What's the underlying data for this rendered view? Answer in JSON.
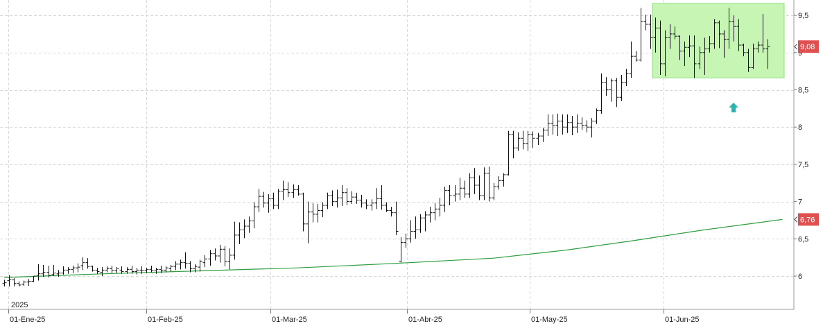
{
  "chart_data": {
    "type": "ohlc",
    "year_label": "2025",
    "x_ticks": [
      "01-Ene-25",
      "01-Feb-25",
      "01-Mar-25",
      "01-Abr-25",
      "01-May-25",
      "01-Jun-25"
    ],
    "y_ticks": [
      "6",
      "6,5",
      "7",
      "7,5",
      "8",
      "8,5",
      "9",
      "9,5"
    ],
    "ylim": [
      5.5,
      9.7
    ],
    "grid": true,
    "last_price": {
      "label": "9,08",
      "value": 9.08,
      "color": "#e05050"
    },
    "moving_average": {
      "label": "6,76",
      "value": 6.76,
      "color": "#2e9e3e"
    },
    "highlight_range": {
      "y_from": 8.66,
      "y_to": 9.66,
      "color": "#c6f5b4",
      "border": "#8ee07a"
    },
    "signal_arrow": {
      "direction": "up",
      "color": "#2bb3b0"
    },
    "price_bars": [
      [
        5.9,
        5.95,
        5.86,
        5.91
      ],
      [
        5.94,
        6.01,
        5.86,
        5.95
      ],
      [
        5.95,
        5.97,
        5.86,
        5.9
      ],
      [
        5.9,
        5.93,
        5.86,
        5.88
      ],
      [
        5.89,
        5.94,
        5.87,
        5.92
      ],
      [
        5.92,
        5.96,
        5.87,
        5.93
      ],
      [
        5.93,
        6.0,
        5.92,
        6.0
      ],
      [
        6.01,
        6.16,
        5.94,
        6.03
      ],
      [
        6.03,
        6.15,
        5.99,
        6.05
      ],
      [
        6.05,
        6.14,
        5.98,
        6.01
      ],
      [
        6.02,
        6.15,
        6.0,
        6.04
      ],
      [
        6.03,
        6.08,
        5.99,
        6.04
      ],
      [
        6.04,
        6.13,
        6.02,
        6.08
      ],
      [
        6.08,
        6.12,
        6.03,
        6.09
      ],
      [
        6.09,
        6.14,
        6.04,
        6.11
      ],
      [
        6.11,
        6.17,
        6.05,
        6.12
      ],
      [
        6.14,
        6.25,
        6.08,
        6.18
      ],
      [
        6.18,
        6.24,
        6.1,
        6.13
      ],
      [
        6.13,
        6.14,
        6.06,
        6.08
      ],
      [
        6.08,
        6.11,
        6.03,
        6.06
      ],
      [
        6.05,
        6.12,
        6.0,
        6.08
      ],
      [
        6.08,
        6.13,
        6.05,
        6.1
      ],
      [
        6.1,
        6.14,
        6.04,
        6.07
      ],
      [
        6.07,
        6.12,
        6.04,
        6.1
      ],
      [
        6.08,
        6.13,
        6.03,
        6.06
      ],
      [
        6.06,
        6.12,
        6.03,
        6.09
      ],
      [
        6.09,
        6.14,
        6.03,
        6.06
      ],
      [
        6.06,
        6.11,
        6.02,
        6.08
      ],
      [
        6.08,
        6.13,
        6.03,
        6.07
      ],
      [
        6.07,
        6.11,
        6.04,
        6.09
      ],
      [
        6.09,
        6.14,
        6.05,
        6.07
      ],
      [
        6.07,
        6.11,
        6.03,
        6.09
      ],
      [
        6.09,
        6.14,
        6.04,
        6.08
      ],
      [
        6.08,
        6.13,
        6.05,
        6.11
      ],
      [
        6.1,
        6.15,
        6.06,
        6.13
      ],
      [
        6.13,
        6.2,
        6.08,
        6.16
      ],
      [
        6.16,
        6.22,
        6.09,
        6.18
      ],
      [
        6.18,
        6.32,
        6.1,
        6.17
      ],
      [
        6.17,
        6.2,
        6.05,
        6.1
      ],
      [
        6.1,
        6.16,
        6.05,
        6.13
      ],
      [
        6.12,
        6.22,
        6.06,
        6.2
      ],
      [
        6.18,
        6.28,
        6.12,
        6.23
      ],
      [
        6.23,
        6.35,
        6.14,
        6.3
      ],
      [
        6.3,
        6.37,
        6.21,
        6.27
      ],
      [
        6.27,
        6.42,
        6.18,
        6.36
      ],
      [
        6.36,
        6.4,
        6.13,
        6.2
      ],
      [
        6.2,
        6.37,
        6.09,
        6.28
      ],
      [
        6.28,
        6.73,
        6.22,
        6.55
      ],
      [
        6.55,
        6.72,
        6.43,
        6.62
      ],
      [
        6.62,
        6.76,
        6.51,
        6.67
      ],
      [
        6.67,
        6.8,
        6.58,
        6.74
      ],
      [
        6.74,
        6.99,
        6.64,
        6.93
      ],
      [
        6.93,
        7.17,
        6.86,
        7.07
      ],
      [
        7.07,
        7.13,
        6.92,
        6.98
      ],
      [
        6.98,
        7.1,
        6.85,
        7.04
      ],
      [
        7.04,
        7.12,
        6.9,
        6.95
      ],
      [
        6.95,
        7.17,
        6.9,
        7.14
      ],
      [
        7.14,
        7.28,
        7.02,
        7.16
      ],
      [
        7.16,
        7.26,
        7.06,
        7.12
      ],
      [
        7.12,
        7.23,
        7.05,
        7.16
      ],
      [
        7.16,
        7.22,
        7.08,
        7.1
      ],
      [
        7.1,
        7.12,
        6.6,
        6.7
      ],
      [
        6.7,
        7.0,
        6.44,
        6.86
      ],
      [
        6.86,
        6.98,
        6.72,
        6.83
      ],
      [
        6.83,
        6.97,
        6.72,
        6.88
      ],
      [
        6.88,
        6.99,
        6.79,
        6.95
      ],
      [
        6.95,
        7.12,
        6.9,
        7.08
      ],
      [
        7.08,
        7.15,
        6.94,
        7.0
      ],
      [
        7.0,
        7.16,
        6.92,
        7.05
      ],
      [
        7.05,
        7.22,
        6.94,
        7.12
      ],
      [
        7.12,
        7.18,
        6.95,
        7.0
      ],
      [
        7.0,
        7.14,
        6.97,
        7.06
      ],
      [
        7.06,
        7.12,
        6.97,
        7.02
      ],
      [
        7.02,
        7.09,
        6.92,
        6.98
      ],
      [
        6.98,
        7.03,
        6.9,
        6.95
      ],
      [
        6.95,
        7.03,
        6.88,
        6.98
      ],
      [
        6.98,
        7.18,
        6.9,
        7.04
      ],
      [
        7.04,
        7.22,
        6.89,
        6.95
      ],
      [
        6.95,
        6.99,
        6.86,
        6.88
      ],
      [
        6.88,
        6.93,
        6.8,
        6.85
      ],
      [
        6.85,
        7.0,
        6.55,
        6.6
      ],
      [
        6.2,
        6.52,
        6.18,
        6.45
      ],
      [
        6.45,
        6.57,
        6.38,
        6.5
      ],
      [
        6.5,
        6.75,
        6.45,
        6.6
      ],
      [
        6.6,
        6.8,
        6.5,
        6.62
      ],
      [
        6.62,
        6.83,
        6.58,
        6.78
      ],
      [
        6.78,
        6.87,
        6.6,
        6.82
      ],
      [
        6.82,
        6.93,
        6.72,
        6.85
      ],
      [
        6.85,
        6.98,
        6.75,
        6.9
      ],
      [
        6.9,
        7.05,
        6.8,
        6.95
      ],
      [
        6.95,
        7.2,
        6.86,
        7.15
      ],
      [
        7.15,
        7.22,
        6.95,
        7.08
      ],
      [
        7.08,
        7.22,
        7.0,
        7.1
      ],
      [
        7.1,
        7.32,
        7.02,
        7.18
      ],
      [
        7.18,
        7.28,
        7.05,
        7.1
      ],
      [
        7.1,
        7.38,
        7.05,
        7.32
      ],
      [
        7.32,
        7.45,
        7.1,
        7.22
      ],
      [
        7.22,
        7.35,
        7.02,
        7.08
      ],
      [
        7.08,
        7.46,
        7.02,
        7.38
      ],
      [
        7.38,
        7.47,
        7.0,
        7.05
      ],
      [
        7.05,
        7.25,
        7.02,
        7.2
      ],
      [
        7.2,
        7.34,
        7.16,
        7.28
      ],
      [
        7.28,
        7.38,
        7.2,
        7.36
      ],
      [
        7.36,
        7.95,
        7.35,
        7.9
      ],
      [
        7.9,
        7.95,
        7.58,
        7.72
      ],
      [
        7.72,
        7.93,
        7.68,
        7.85
      ],
      [
        7.85,
        7.95,
        7.7,
        7.78
      ],
      [
        7.78,
        7.95,
        7.68,
        7.9
      ],
      [
        7.9,
        7.94,
        7.72,
        7.85
      ],
      [
        7.85,
        7.92,
        7.76,
        7.88
      ],
      [
        7.88,
        7.99,
        7.8,
        7.96
      ],
      [
        7.96,
        8.17,
        7.88,
        8.05
      ],
      [
        8.05,
        8.17,
        7.9,
        8.02
      ],
      [
        8.02,
        8.18,
        7.88,
        8.08
      ],
      [
        8.08,
        8.17,
        7.9,
        8.0
      ],
      [
        8.0,
        8.17,
        7.92,
        8.06
      ],
      [
        8.06,
        8.15,
        7.89,
        8.0
      ],
      [
        8.0,
        8.17,
        7.92,
        8.05
      ],
      [
        8.05,
        8.13,
        7.96,
        8.02
      ],
      [
        8.02,
        8.09,
        7.93,
        8.0
      ],
      [
        8.0,
        8.12,
        7.86,
        8.08
      ],
      [
        8.08,
        8.25,
        8.04,
        8.22
      ],
      [
        8.22,
        8.72,
        8.18,
        8.6
      ],
      [
        8.6,
        8.67,
        8.42,
        8.5
      ],
      [
        8.5,
        8.65,
        8.34,
        8.62
      ],
      [
        8.62,
        8.66,
        8.27,
        8.4
      ],
      [
        8.4,
        8.7,
        8.35,
        8.6
      ],
      [
        8.6,
        8.78,
        8.55,
        8.72
      ],
      [
        8.72,
        9.15,
        8.66,
        8.95
      ],
      [
        8.95,
        9.02,
        8.88,
        8.9
      ],
      [
        8.9,
        9.6,
        8.88,
        9.42
      ],
      [
        9.42,
        9.51,
        9.3,
        9.38
      ],
      [
        9.38,
        9.51,
        9.05,
        9.2
      ],
      [
        9.2,
        9.47,
        9.0,
        9.33
      ],
      [
        9.33,
        9.43,
        8.7,
        8.85
      ],
      [
        8.85,
        9.3,
        8.68,
        9.2
      ],
      [
        9.2,
        9.38,
        9.05,
        9.25
      ],
      [
        9.25,
        9.35,
        9.18,
        9.22
      ],
      [
        9.22,
        9.23,
        8.9,
        9.02
      ],
      [
        9.02,
        9.15,
        8.82,
        9.07
      ],
      [
        9.07,
        9.23,
        8.94,
        9.09
      ],
      [
        9.09,
        9.23,
        8.66,
        8.85
      ],
      [
        8.85,
        9.08,
        8.78,
        9.0
      ],
      [
        9.0,
        9.2,
        8.7,
        9.05
      ],
      [
        9.05,
        9.22,
        9.0,
        9.12
      ],
      [
        9.12,
        9.45,
        9.05,
        9.4
      ],
      [
        9.4,
        9.43,
        9.06,
        9.25
      ],
      [
        9.25,
        9.3,
        8.93,
        9.18
      ],
      [
        9.18,
        9.6,
        9.05,
        9.42
      ],
      [
        9.42,
        9.5,
        9.15,
        9.35
      ],
      [
        9.35,
        9.45,
        9.02,
        9.1
      ],
      [
        9.1,
        9.12,
        8.95,
        9.0
      ],
      [
        9.0,
        9.05,
        8.74,
        8.8
      ],
      [
        8.8,
        9.12,
        8.78,
        9.05
      ],
      [
        9.05,
        9.15,
        9.0,
        9.1
      ],
      [
        9.1,
        9.52,
        9.0,
        9.05
      ],
      [
        9.05,
        9.18,
        8.78,
        9.08
      ]
    ],
    "ma_points": [
      [
        0,
        5.98
      ],
      [
        20,
        6.03
      ],
      [
        40,
        6.07
      ],
      [
        60,
        6.11
      ],
      [
        80,
        6.17
      ],
      [
        100,
        6.24
      ],
      [
        115,
        6.35
      ],
      [
        128,
        6.47
      ],
      [
        143,
        6.62
      ],
      [
        159,
        6.76
      ]
    ]
  }
}
